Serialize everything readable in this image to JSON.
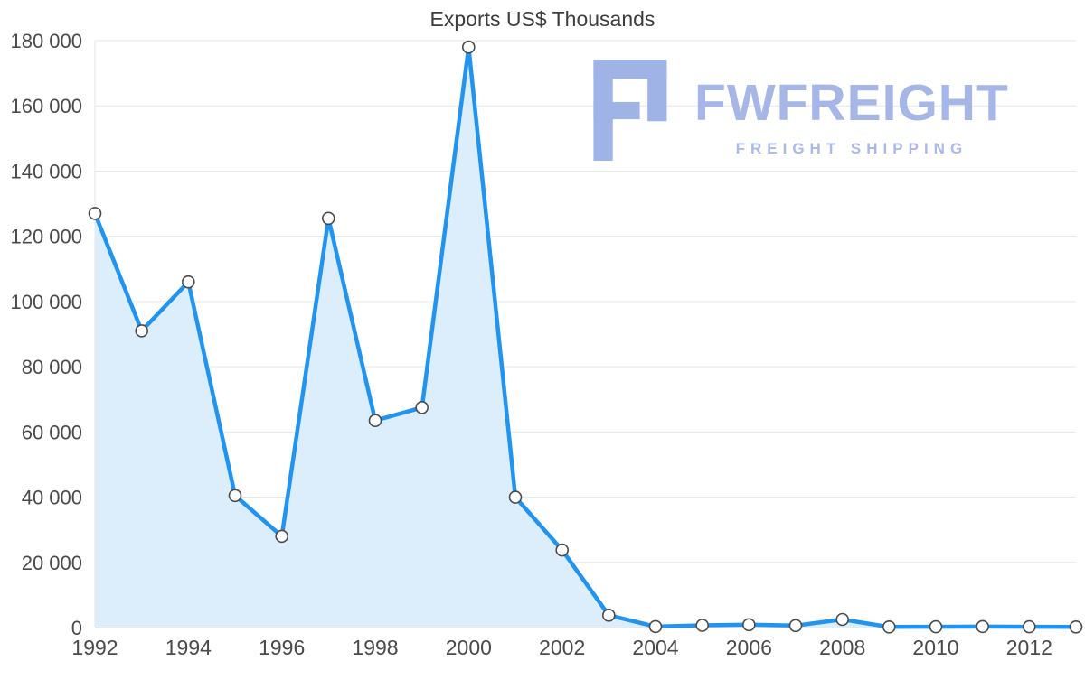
{
  "chart_data": {
    "type": "area",
    "title": "Exports US$ Thousands",
    "x": [
      1992,
      1993,
      1994,
      1995,
      1996,
      1997,
      1998,
      1999,
      2000,
      2001,
      2002,
      2003,
      2004,
      2005,
      2006,
      2007,
      2008,
      2009,
      2010,
      2011,
      2012,
      2013
    ],
    "values": [
      127000,
      91000,
      106000,
      40500,
      28000,
      125500,
      63500,
      67500,
      178000,
      40000,
      23800,
      3800,
      300,
      700,
      900,
      600,
      2500,
      200,
      250,
      300,
      250,
      200
    ],
    "xlabel": "",
    "ylabel": "",
    "ylim": [
      0,
      180000
    ],
    "ytick_interval": 20000,
    "ytick_labels": [
      "0",
      "20 000",
      "40 000",
      "60 000",
      "80 000",
      "100 000",
      "120 000",
      "140 000",
      "160 000",
      "180 000"
    ],
    "xtick_years": [
      1992,
      1994,
      1996,
      1998,
      2000,
      2002,
      2004,
      2006,
      2008,
      2010,
      2012
    ],
    "grid": "horizontal",
    "legend": "none",
    "colors": {
      "line": "#2193f0",
      "area": "#dcedfc",
      "marker_fill": "#ffffff",
      "marker_stroke": "#4a4a4a",
      "grid": "#e6e6e6",
      "axis": "#c6c6c6",
      "tick_text": "#4a4a4a",
      "title": "#3d3d3d"
    }
  },
  "logo": {
    "name": "FWFREIGHT",
    "tagline": "FREIGHT SHIPPING",
    "color": "#a5b6e7"
  }
}
